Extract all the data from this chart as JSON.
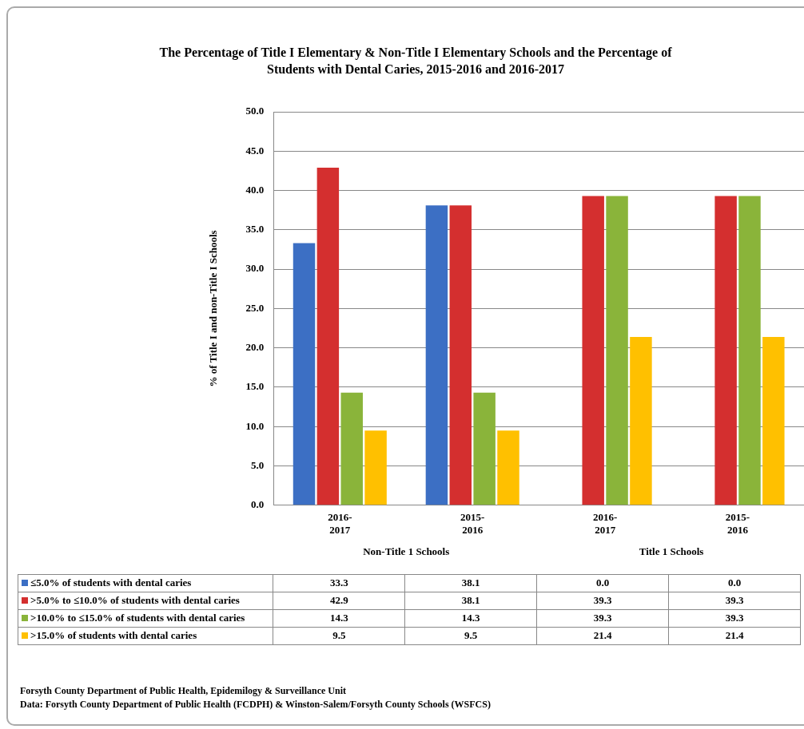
{
  "chart_data": {
    "type": "bar",
    "title": "The Percentage of Title I Elementary & Non-Title I Elementary Schools and the Percentage of Students with Dental Caries, 2015-2016 and 2016-2017",
    "ylabel": "% of Title I and non-Title I Schools",
    "categories": [
      "2016-2017",
      "2015-2016",
      "2016-2017",
      "2015-2016"
    ],
    "series": [
      {
        "name": "≤5.0% of students with dental caries",
        "color": "#3c6fc4",
        "values": [
          33.3,
          38.1,
          0.0,
          0.0
        ],
        "value_labels": [
          "33.3",
          "38.1",
          "0.0",
          "0.0"
        ]
      },
      {
        "name": ">5.0% to ≤10.0% of students with dental caries",
        "color": "#d42f2f",
        "values": [
          42.9,
          38.1,
          39.3,
          39.3
        ],
        "value_labels": [
          "42.9",
          "38.1",
          "39.3",
          "39.3"
        ]
      },
      {
        "name": ">10.0% to ≤15.0% of students with dental caries",
        "color": "#8ab43a",
        "values": [
          14.3,
          14.3,
          39.3,
          39.3
        ],
        "value_labels": [
          "14.3",
          "14.3",
          "39.3",
          "39.3"
        ]
      },
      {
        "name": ">15.0% of students with dental caries",
        "color": "#ffc000",
        "values": [
          9.5,
          9.5,
          21.4,
          21.4
        ],
        "value_labels": [
          "9.5",
          "9.5",
          "21.4",
          "21.4"
        ]
      }
    ],
    "ylim": [
      0,
      50
    ],
    "yticks": [
      {
        "value": 0,
        "label": "0.0"
      },
      {
        "value": 5,
        "label": "5.0"
      },
      {
        "value": 10,
        "label": "10.0"
      },
      {
        "value": 15,
        "label": "15.0"
      },
      {
        "value": 20,
        "label": "20.0"
      },
      {
        "value": 25,
        "label": "25.0"
      },
      {
        "value": 30,
        "label": "30.0"
      },
      {
        "value": 35,
        "label": "35.0"
      },
      {
        "value": 40,
        "label": "40.0"
      },
      {
        "value": 45,
        "label": "45.0"
      },
      {
        "value": 50,
        "label": "50.0"
      }
    ],
    "grid": "y",
    "legend": "bottom",
    "annotations": [
      "Non-Title 1 Schools",
      "Title 1 Schools",
      "Forsyth County Department of Public Health, Epidemilogy & Surveillance Unit",
      "Data: Forsyth County Department of Public Health (FCDPH) & Winston-Salem/Forsyth County Schools (WSFCS)"
    ]
  }
}
